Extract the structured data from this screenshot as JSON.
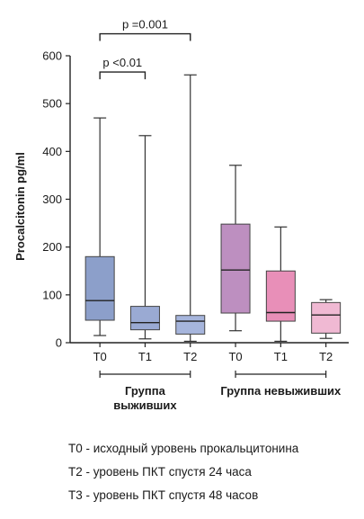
{
  "chart_data": {
    "type": "box",
    "ylabel": "Procalcitonin pg/ml",
    "ylim": [
      0,
      600
    ],
    "yticks": [
      0,
      100,
      200,
      300,
      400,
      500,
      600
    ],
    "boxes": [
      {
        "label": "T0",
        "color": "#8c9fca",
        "whisker_low": 15,
        "q1": 47,
        "median": 88,
        "q3": 180,
        "whisker_high": 470
      },
      {
        "label": "T1",
        "color": "#9aaad3",
        "whisker_low": 8,
        "q1": 27,
        "median": 42,
        "q3": 76,
        "whisker_high": 433
      },
      {
        "label": "T2",
        "color": "#a6b5dc",
        "whisker_low": 3,
        "q1": 18,
        "median": 45,
        "q3": 57,
        "whisker_high": 560
      },
      {
        "label": "T0",
        "color": "#bd8fc0",
        "whisker_low": 25,
        "q1": 62,
        "median": 152,
        "q3": 248,
        "whisker_high": 371
      },
      {
        "label": "T1",
        "color": "#e88fb8",
        "whisker_low": 3,
        "q1": 45,
        "median": 63,
        "q3": 150,
        "whisker_high": 242
      },
      {
        "label": "T2",
        "color": "#f0b9d3",
        "whisker_low": 9,
        "q1": 20,
        "median": 58,
        "q3": 84,
        "whisker_high": 90
      }
    ],
    "groups": [
      {
        "label_line1": "Группа",
        "label_line2": "выживших",
        "from": 0,
        "to": 2
      },
      {
        "label_line1": "Группа невыживших",
        "label_line2": "",
        "from": 3,
        "to": 5
      }
    ],
    "annotations": [
      {
        "text": "p =0.001",
        "from": 0,
        "to": 2,
        "level": 646
      },
      {
        "text": "p <0.01",
        "from": 0,
        "to": 1,
        "level": 566
      }
    ]
  },
  "notes": [
    "T0 - исходный уровень прокальцитонина",
    "T2 - уровень ПКТ спустя 24 часа",
    "T3 - уровень ПКТ спустя 48 часов"
  ]
}
